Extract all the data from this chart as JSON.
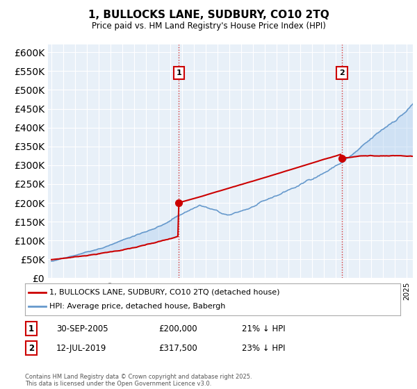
{
  "title": "1, BULLOCKS LANE, SUDBURY, CO10 2TQ",
  "subtitle": "Price paid vs. HM Land Registry's House Price Index (HPI)",
  "ylim": [
    0,
    620000
  ],
  "yticks": [
    0,
    50000,
    100000,
    150000,
    200000,
    250000,
    300000,
    350000,
    400000,
    450000,
    500000,
    550000,
    600000
  ],
  "x_start_year": 1995,
  "x_end_year": 2025,
  "line1_color": "#cc0000",
  "line2_color": "#6699cc",
  "fill_color": "#ddeeff",
  "marker1_date": 2005.75,
  "marker1_price": 200000,
  "marker2_date": 2019.53,
  "marker2_price": 317500,
  "vline_color": "#cc0000",
  "legend_line1": "1, BULLOCKS LANE, SUDBURY, CO10 2TQ (detached house)",
  "legend_line2": "HPI: Average price, detached house, Babergh",
  "table_entries": [
    {
      "num": "1",
      "date": "30-SEP-2005",
      "price": "£200,000",
      "change": "21% ↓ HPI"
    },
    {
      "num": "2",
      "date": "12-JUL-2019",
      "price": "£317,500",
      "change": "23% ↓ HPI"
    }
  ],
  "footnote": "Contains HM Land Registry data © Crown copyright and database right 2025.\nThis data is licensed under the Open Government Licence v3.0.",
  "background_color": "#ffffff",
  "grid_color": "#cccccc",
  "box_color": "#cc0000"
}
